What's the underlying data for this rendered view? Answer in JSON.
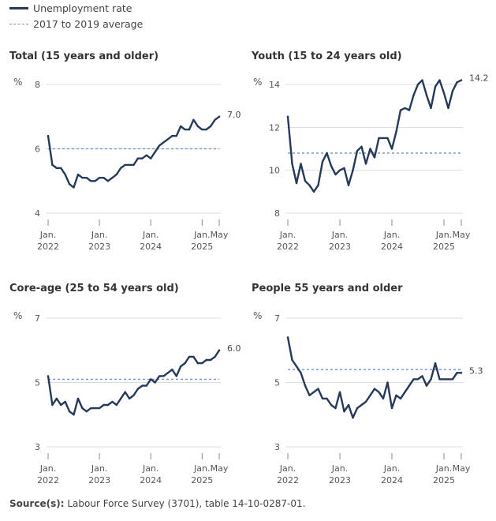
{
  "legend": {
    "series_label": "Unemployment rate",
    "average_label": "2017 to 2019 average"
  },
  "colors": {
    "series": "#25395a",
    "average": "#6b8fd6",
    "grid": "#dddddd"
  },
  "source": {
    "label": "Source(s):",
    "text": "Labour Force Survey (3701), table 14-10-0287-01."
  },
  "chart_data": [
    {
      "type": "line",
      "title": "Total (15 years and older)",
      "ylabel": "%",
      "ylim": [
        4,
        8
      ],
      "yticks": [
        "4",
        "6",
        "8"
      ],
      "x_ticks": [
        {
          "index": 0,
          "label": [
            "Jan.",
            "2022"
          ]
        },
        {
          "index": 12,
          "label": [
            "Jan.",
            "2023"
          ]
        },
        {
          "index": 24,
          "label": [
            "Jan.",
            "2024"
          ]
        },
        {
          "index": 36,
          "label": [
            "Jan.",
            "2025"
          ]
        },
        {
          "index": 40,
          "label": [
            "May",
            ""
          ]
        }
      ],
      "average": 6.0,
      "end_label": "7.0",
      "values": [
        6.4,
        5.5,
        5.4,
        5.4,
        5.2,
        4.9,
        4.8,
        5.2,
        5.1,
        5.1,
        5.0,
        5.0,
        5.1,
        5.1,
        5.0,
        5.1,
        5.2,
        5.4,
        5.5,
        5.5,
        5.5,
        5.7,
        5.7,
        5.8,
        5.7,
        5.9,
        6.1,
        6.2,
        6.3,
        6.4,
        6.4,
        6.7,
        6.6,
        6.6,
        6.9,
        6.7,
        6.6,
        6.6,
        6.7,
        6.9,
        7.0
      ]
    },
    {
      "type": "line",
      "title": "Youth (15 to 24 years old)",
      "ylabel": "%",
      "ylim": [
        8,
        14
      ],
      "yticks": [
        "8",
        "10",
        "12",
        "14"
      ],
      "x_ticks": [
        {
          "index": 0,
          "label": [
            "Jan.",
            "2022"
          ]
        },
        {
          "index": 12,
          "label": [
            "Jan.",
            "2023"
          ]
        },
        {
          "index": 24,
          "label": [
            "Jan.",
            "2024"
          ]
        },
        {
          "index": 36,
          "label": [
            "Jan.",
            "2025"
          ]
        },
        {
          "index": 40,
          "label": [
            "May",
            ""
          ]
        }
      ],
      "average": 10.8,
      "end_label": "14.2",
      "values": [
        12.5,
        10.3,
        9.4,
        10.3,
        9.5,
        9.3,
        9.0,
        9.3,
        10.4,
        10.8,
        10.2,
        9.8,
        10.0,
        10.1,
        9.3,
        10.0,
        10.9,
        11.1,
        10.3,
        11.0,
        10.6,
        11.5,
        11.5,
        11.5,
        11.0,
        11.8,
        12.8,
        12.9,
        12.8,
        13.5,
        14.0,
        14.2,
        13.5,
        12.9,
        13.9,
        14.2,
        13.6,
        12.9,
        13.7,
        14.1,
        14.2
      ]
    },
    {
      "type": "line",
      "title": "Core-age (25 to 54 years old)",
      "ylabel": "%",
      "ylim": [
        3,
        7
      ],
      "yticks": [
        "3",
        "5",
        "7"
      ],
      "x_ticks": [
        {
          "index": 0,
          "label": [
            "Jan.",
            "2022"
          ]
        },
        {
          "index": 12,
          "label": [
            "Jan.",
            "2023"
          ]
        },
        {
          "index": 24,
          "label": [
            "Jan.",
            "2024"
          ]
        },
        {
          "index": 36,
          "label": [
            "Jan.",
            "2025"
          ]
        },
        {
          "index": 40,
          "label": [
            "May",
            ""
          ]
        }
      ],
      "average": 5.1,
      "end_label": "6.0",
      "values": [
        5.2,
        4.3,
        4.5,
        4.3,
        4.4,
        4.1,
        4.0,
        4.5,
        4.2,
        4.1,
        4.2,
        4.2,
        4.2,
        4.3,
        4.3,
        4.4,
        4.3,
        4.5,
        4.7,
        4.5,
        4.6,
        4.8,
        4.9,
        4.9,
        5.1,
        5.0,
        5.2,
        5.2,
        5.3,
        5.4,
        5.2,
        5.5,
        5.6,
        5.8,
        5.8,
        5.6,
        5.6,
        5.7,
        5.7,
        5.8,
        6.0
      ]
    },
    {
      "type": "line",
      "title": "People 55 years and older",
      "ylabel": "%",
      "ylim": [
        3,
        7
      ],
      "yticks": [
        "3",
        "5",
        "7"
      ],
      "x_ticks": [
        {
          "index": 0,
          "label": [
            "Jan.",
            "2022"
          ]
        },
        {
          "index": 12,
          "label": [
            "Jan.",
            "2023"
          ]
        },
        {
          "index": 24,
          "label": [
            "Jan.",
            "2024"
          ]
        },
        {
          "index": 36,
          "label": [
            "Jan.",
            "2025"
          ]
        },
        {
          "index": 40,
          "label": [
            "May",
            ""
          ]
        }
      ],
      "average": 5.4,
      "end_label": "5.3",
      "values": [
        6.4,
        5.7,
        5.5,
        5.3,
        4.9,
        4.6,
        4.7,
        4.8,
        4.5,
        4.5,
        4.3,
        4.2,
        4.7,
        4.1,
        4.3,
        3.9,
        4.2,
        4.3,
        4.4,
        4.6,
        4.8,
        4.7,
        4.5,
        5.0,
        4.2,
        4.6,
        4.5,
        4.7,
        4.9,
        5.1,
        5.1,
        5.2,
        4.9,
        5.1,
        5.6,
        5.1,
        5.1,
        5.1,
        5.1,
        5.3,
        5.3
      ]
    }
  ]
}
